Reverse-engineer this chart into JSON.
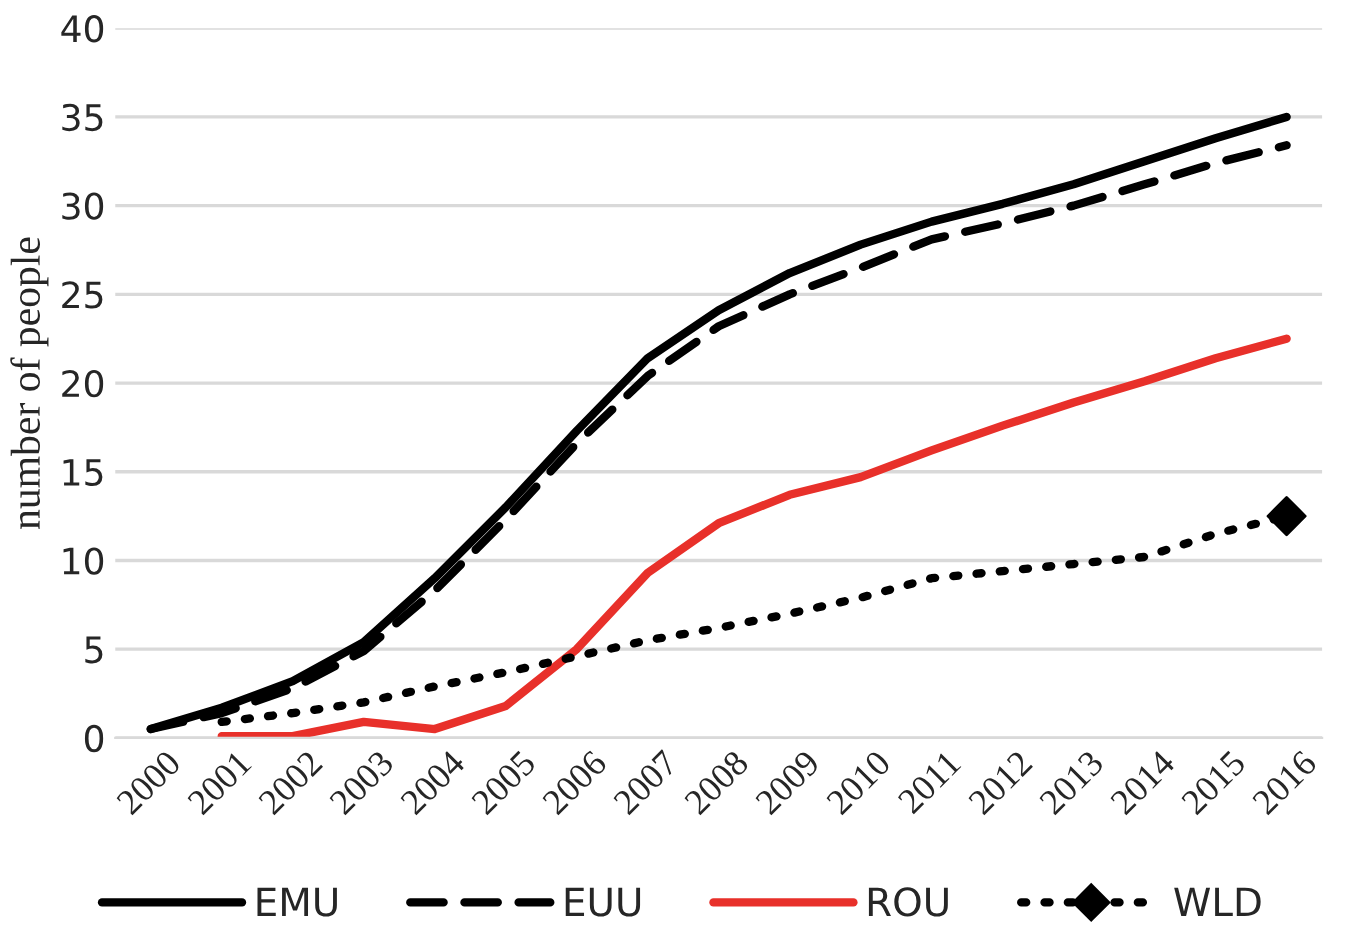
{
  "chart_data": {
    "type": "line",
    "ylabel": "number of people",
    "categories": [
      "2000",
      "2001",
      "2002",
      "2003",
      "2004",
      "2005",
      "2006",
      "2007",
      "2008",
      "2009",
      "2010",
      "2011",
      "2012",
      "2013",
      "2014",
      "2015",
      "2016"
    ],
    "series": [
      {
        "name": "EMU",
        "color": "#000000",
        "line_style": "solid",
        "values": [
          0.5,
          1.7,
          3.2,
          5.4,
          9.0,
          13.0,
          17.3,
          21.4,
          24.1,
          26.2,
          27.8,
          29.1,
          30.1,
          31.2,
          32.5,
          33.8,
          35.0
        ]
      },
      {
        "name": "EUU",
        "color": "#000000",
        "line_style": "dashed",
        "values": [
          0.5,
          1.4,
          2.8,
          4.9,
          8.3,
          12.3,
          16.6,
          20.4,
          23.2,
          25.0,
          26.5,
          28.1,
          29.0,
          30.0,
          31.2,
          32.4,
          33.4
        ]
      },
      {
        "name": "ROU",
        "color": "#e8302a",
        "line_style": "solid",
        "values": [
          null,
          0.1,
          0.1,
          0.9,
          0.5,
          1.8,
          5.0,
          9.3,
          12.1,
          13.7,
          14.7,
          16.2,
          17.6,
          18.9,
          20.1,
          21.4,
          22.5
        ]
      },
      {
        "name": "WLD",
        "color": "#000000",
        "line_style": "dotted",
        "values": [
          null,
          0.9,
          1.4,
          2.0,
          2.9,
          3.7,
          4.6,
          5.5,
          6.2,
          7.0,
          7.9,
          9.0,
          9.4,
          9.8,
          10.2,
          11.5,
          12.5
        ]
      }
    ],
    "ylim": [
      0,
      40
    ],
    "yticks": [
      0,
      5,
      10,
      15,
      20,
      25,
      30,
      35,
      40
    ],
    "grid": "y",
    "legend": "bottom"
  }
}
